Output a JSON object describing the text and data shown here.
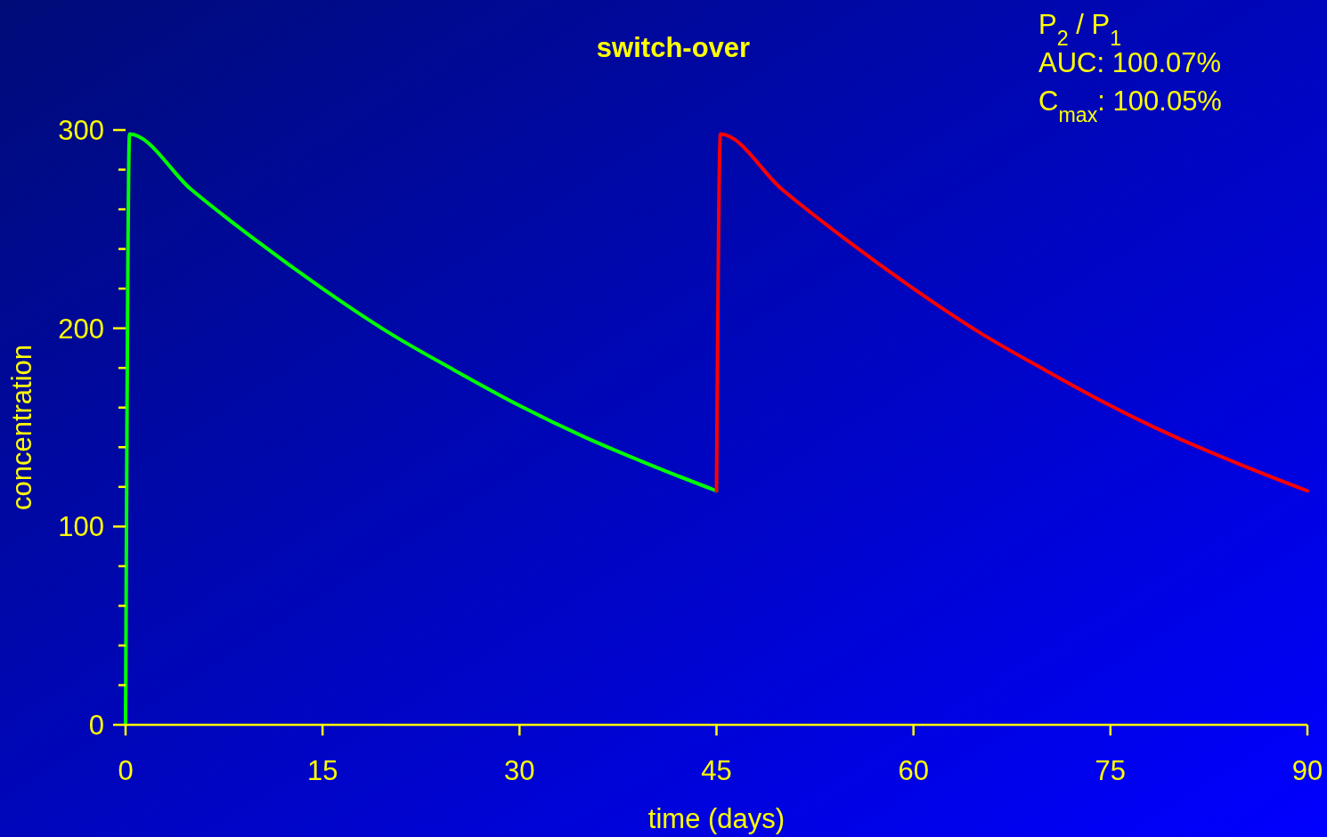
{
  "chart_data": {
    "type": "line",
    "title": "switch-over",
    "xlabel": "time (days)",
    "ylabel": "concentration",
    "annotations": [
      "P$_{2}$ / P$_{1}$",
      "AUC: 100.07%",
      "C$_{max}$:  100.05%"
    ],
    "xlim": [
      0,
      90
    ],
    "xticks": [
      0,
      15,
      30,
      45,
      60,
      75,
      90
    ],
    "ylim": [
      0,
      300
    ],
    "yticks": [
      0,
      {
        "value": 20,
        "label": null
      },
      {
        "value": 40,
        "label": null
      },
      {
        "value": 60,
        "label": null
      },
      {
        "value": 80,
        "label": null
      },
      100,
      {
        "value": 120,
        "label": null
      },
      {
        "value": 140,
        "label": null
      },
      {
        "value": 160,
        "label": null
      },
      {
        "value": 180,
        "label": null
      },
      200,
      {
        "value": 220,
        "label": null
      },
      {
        "value": 240,
        "label": null
      },
      {
        "value": 260,
        "label": null
      },
      {
        "value": 280,
        "label": null
      },
      300
    ],
    "grid": false,
    "marker": "none",
    "line_style": "solid",
    "series": [
      {
        "color": "#00ff00",
        "x": [
          0,
          0.3,
          5,
          10,
          15,
          20,
          25,
          30,
          35,
          40,
          45
        ],
        "values": [
          0,
          298,
          270,
          244,
          220,
          198,
          179,
          161,
          145,
          131,
          118
        ]
      },
      {
        "color": "#ff0000",
        "x": [
          45,
          45.3,
          50,
          55,
          60,
          65,
          70,
          75,
          80,
          85,
          90
        ],
        "values": [
          118,
          298,
          270,
          244,
          220,
          198,
          179,
          161,
          145,
          131,
          118
        ]
      }
    ]
  }
}
